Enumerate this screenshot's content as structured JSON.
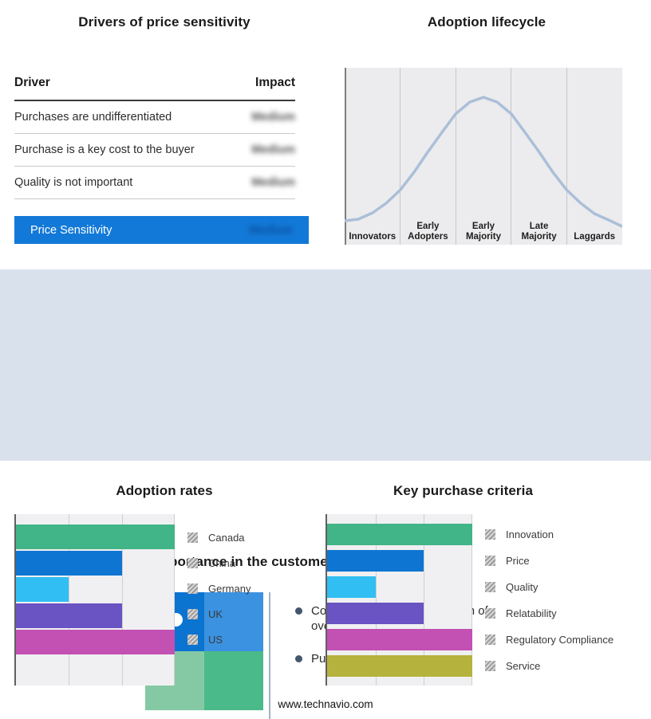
{
  "page": {
    "footer_url": "www.technavio.com",
    "mid_band_color": "#d9e2ec"
  },
  "drivers": {
    "title": "Drivers of price sensitivity",
    "columns": {
      "driver": "Driver",
      "impact": "Impact"
    },
    "rows": [
      {
        "driver": "Purchases are undifferentiated",
        "impact": "Medium"
      },
      {
        "driver": "Purchase is a key cost to the buyer",
        "impact": "Medium"
      },
      {
        "driver": "Quality is not important",
        "impact": "Medium"
      }
    ],
    "highlight": {
      "label": "Price Sensitivity",
      "impact": "Medium",
      "color": "#1379d8"
    },
    "impact_values_blurred": true
  },
  "lifecycle": {
    "title": "Adoption lifecycle"
  },
  "basket": {
    "title": "Importance in the customer purchase basket",
    "bullets": [
      "Cost of purchase as proportion of overall purchase basket",
      "Purchase criticality"
    ],
    "quadrant_colors": [
      "#0b73d0",
      "#3b92e0",
      "#85c9a4",
      "#4bba8a"
    ]
  },
  "chart_data": [
    {
      "type": "line",
      "title": "Adoption lifecycle",
      "x": [
        "Innovators",
        "Early Adopters",
        "Early Majority",
        "Late Majority",
        "Laggards"
      ],
      "y_relative": [
        0.11,
        0.57,
        1.0,
        0.57,
        0.11
      ],
      "description": "Bell-shaped adoption curve peaking over Early Majority; no numeric axes shown",
      "line_color": "#abbfd8",
      "grid": "vertical stage separators",
      "legend": "none"
    },
    {
      "type": "bar",
      "title": "Adoption rates",
      "orientation": "horizontal",
      "categories": [
        "Canada",
        "China",
        "Germany",
        "UK",
        "US"
      ],
      "values": [
        3,
        2,
        1,
        2,
        3
      ],
      "colors": [
        "#41b488",
        "#0e76d2",
        "#31bef2",
        "#6a53c2",
        "#c251b3"
      ],
      "xlim": [
        0,
        3
      ],
      "legend_position": "right",
      "note": "No numeric axis labels shown; values are relative bar lengths measured against the three gridlines"
    },
    {
      "type": "bar",
      "title": "Key purchase criteria",
      "orientation": "horizontal",
      "categories": [
        "Innovation",
        "Price",
        "Quality",
        "Relatability",
        "Regulatory Compliance",
        "Service"
      ],
      "values": [
        3,
        2,
        1,
        2,
        3,
        3
      ],
      "colors": [
        "#41b488",
        "#0e76d2",
        "#31bef2",
        "#6a53c2",
        "#c251b3",
        "#b5b23e"
      ],
      "xlim": [
        0,
        3
      ],
      "legend_position": "right",
      "note": "No numeric axis labels shown; values are relative bar lengths measured against the three gridlines"
    }
  ]
}
